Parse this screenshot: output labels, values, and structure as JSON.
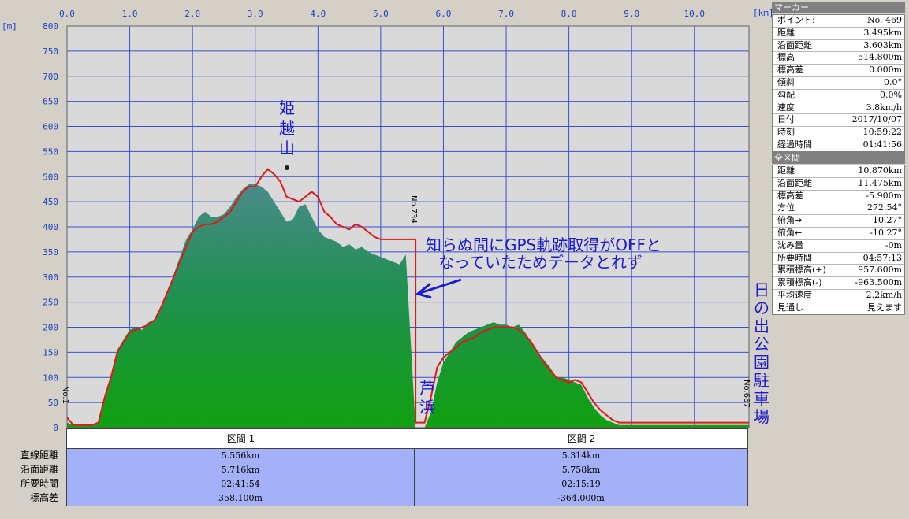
{
  "chart_data": {
    "type": "area",
    "x_unit_label": "[km]",
    "y_unit_label": "[m]",
    "xlim": [
      0,
      10.87
    ],
    "ylim": [
      0,
      800
    ],
    "x_ticks": [
      "0.0",
      "1.0",
      "2.0",
      "3.0",
      "4.0",
      "5.0",
      "6.0",
      "7.0",
      "8.0",
      "9.0",
      "10.0"
    ],
    "y_ticks": [
      "0",
      "50",
      "100",
      "150",
      "200",
      "250",
      "300",
      "350",
      "400",
      "450",
      "500",
      "550",
      "600",
      "650",
      "700",
      "750",
      "800"
    ],
    "grid": true,
    "series": [
      {
        "kind": "red-line",
        "x": [
          0,
          0.1,
          0.2,
          0.3,
          0.4,
          0.5,
          0.6,
          0.7,
          0.8,
          0.9,
          1.0,
          1.1,
          1.2,
          1.3,
          1.4,
          1.5,
          1.6,
          1.7,
          1.8,
          1.9,
          2.0,
          2.1,
          2.2,
          2.3,
          2.4,
          2.5,
          2.6,
          2.7,
          2.8,
          2.9,
          3.0,
          3.1,
          3.2,
          3.3,
          3.4,
          3.5,
          3.6,
          3.7,
          3.8,
          3.9,
          4.0,
          4.1,
          4.2,
          4.3,
          4.4,
          4.5,
          4.6,
          4.7,
          4.8,
          4.9,
          5.0,
          5.1,
          5.2,
          5.3,
          5.4,
          5.556,
          5.556,
          5.7,
          5.8,
          5.9,
          6.0,
          6.1,
          6.2,
          6.3,
          6.4,
          6.5,
          6.6,
          6.7,
          6.8,
          6.9,
          7.0,
          7.1,
          7.2,
          7.3,
          7.4,
          7.5,
          7.6,
          7.7,
          7.8,
          7.9,
          8.0,
          8.1,
          8.2,
          8.3,
          8.4,
          8.5,
          8.6,
          8.7,
          8.8,
          8.9,
          9.0,
          9.1,
          9.2,
          9.3,
          9.4,
          9.5,
          9.6,
          9.7,
          9.8,
          9.9,
          10.0,
          10.2,
          10.4,
          10.6,
          10.87
        ],
        "y": [
          20,
          5,
          5,
          5,
          5,
          10,
          60,
          100,
          150,
          170,
          190,
          195,
          200,
          205,
          215,
          240,
          270,
          300,
          330,
          360,
          390,
          400,
          405,
          405,
          410,
          420,
          430,
          450,
          470,
          480,
          480,
          500,
          515,
          505,
          490,
          460,
          455,
          450,
          460,
          470,
          460,
          430,
          420,
          405,
          400,
          395,
          405,
          400,
          390,
          380,
          375,
          375,
          375,
          375,
          375,
          375,
          10,
          10,
          60,
          120,
          140,
          150,
          160,
          170,
          175,
          180,
          190,
          195,
          200,
          200,
          200,
          200,
          195,
          185,
          170,
          150,
          130,
          115,
          100,
          95,
          90,
          95,
          90,
          70,
          50,
          35,
          25,
          15,
          10,
          10,
          10,
          10,
          10,
          10,
          10,
          10,
          10,
          10,
          10,
          10,
          10,
          10,
          10,
          10,
          10
        ],
        "color": "#e01818"
      },
      {
        "kind": "green-area",
        "x": [
          0,
          0.1,
          0.2,
          0.3,
          0.4,
          0.5,
          0.6,
          0.7,
          0.8,
          0.9,
          1.0,
          1.1,
          1.2,
          1.3,
          1.4,
          1.5,
          1.6,
          1.7,
          1.8,
          1.9,
          2.0,
          2.1,
          2.2,
          2.3,
          2.4,
          2.5,
          2.6,
          2.7,
          2.8,
          2.9,
          3.0,
          3.1,
          3.2,
          3.3,
          3.4,
          3.5,
          3.6,
          3.7,
          3.8,
          3.9,
          4.0,
          4.1,
          4.2,
          4.3,
          4.4,
          4.5,
          4.6,
          4.7,
          4.8,
          4.9,
          5.0,
          5.1,
          5.2,
          5.3,
          5.4,
          5.556,
          5.6,
          5.7,
          5.8,
          5.9,
          6.0,
          6.1,
          6.2,
          6.3,
          6.4,
          6.5,
          6.6,
          6.7,
          6.8,
          6.9,
          7.0,
          7.1,
          7.2,
          7.3,
          7.4,
          7.5,
          7.6,
          7.7,
          7.8,
          7.9,
          8.0,
          8.1,
          8.2,
          8.3,
          8.4,
          8.5,
          8.6,
          8.7,
          8.8,
          8.9,
          9.0,
          9.1,
          9.2,
          9.3,
          9.4,
          9.5,
          9.6,
          9.7,
          9.8,
          9.9,
          10.0,
          10.2,
          10.4,
          10.6,
          10.87
        ],
        "y": [
          10,
          5,
          5,
          5,
          5,
          10,
          60,
          100,
          155,
          175,
          195,
          200,
          195,
          210,
          215,
          240,
          270,
          305,
          340,
          375,
          395,
          420,
          430,
          420,
          420,
          425,
          440,
          460,
          475,
          485,
          485,
          480,
          470,
          450,
          430,
          410,
          415,
          440,
          445,
          420,
          395,
          380,
          375,
          370,
          360,
          365,
          355,
          360,
          350,
          345,
          340,
          335,
          330,
          325,
          345,
          0,
          0,
          0,
          30,
          90,
          130,
          150,
          170,
          180,
          190,
          195,
          200,
          205,
          210,
          205,
          205,
          200,
          205,
          190,
          170,
          150,
          135,
          120,
          100,
          100,
          95,
          90,
          85,
          60,
          40,
          25,
          15,
          10,
          5,
          5,
          5,
          5,
          5,
          5,
          5,
          5,
          5,
          5,
          5,
          5,
          5,
          5,
          5,
          5,
          5
        ],
        "color": "#1a9a1a"
      }
    ],
    "annotations": {
      "summit": "姫越山",
      "end_point": "日の出公園駐車場",
      "dip": "芦浜",
      "gps_note_line1": "知らぬ間にGPS軌跡取得がOFFと",
      "gps_note_line2": "なっていたためデータとれず",
      "marker_start": "No.1",
      "marker_gap": "No.734",
      "marker_end": "No.667"
    }
  },
  "marker_panel": {
    "title": "マーカー",
    "rows": [
      {
        "k": "ポイント:",
        "v": "No. 469"
      },
      {
        "k": "距離",
        "v": "3.495km"
      },
      {
        "k": "沿面距離",
        "v": "3.603km"
      },
      {
        "k": "標高",
        "v": "514.800m"
      },
      {
        "k": "標高差",
        "v": "0.000m"
      },
      {
        "k": "傾斜",
        "v": "0.0°"
      },
      {
        "k": "勾配",
        "v": "0.0%"
      },
      {
        "k": "速度",
        "v": "3.8km/h"
      },
      {
        "k": "日付",
        "v": "2017/10/07"
      },
      {
        "k": "時刻",
        "v": "10:59:22"
      },
      {
        "k": "経過時間",
        "v": "01:41:56"
      }
    ]
  },
  "total_panel": {
    "title": "全区間",
    "rows": [
      {
        "k": "距離",
        "v": "10.870km"
      },
      {
        "k": "沿面距離",
        "v": "11.475km"
      },
      {
        "k": "標高差",
        "v": "-5.900m"
      },
      {
        "k": "方位",
        "v": "272.54°"
      },
      {
        "k": "俯角→",
        "v": "10.27°"
      },
      {
        "k": "俯角←",
        "v": "-10.27°"
      },
      {
        "k": "沈み量",
        "v": "-0m"
      },
      {
        "k": "所要時間",
        "v": "04:57:13"
      },
      {
        "k": "累積標高(+)",
        "v": "957.600m"
      },
      {
        "k": "累積標高(-)",
        "v": "-963.500m"
      },
      {
        "k": "平均速度",
        "v": "2.2km/h"
      },
      {
        "k": "見通し",
        "v": "見えます"
      }
    ]
  },
  "sections": {
    "row_labels": [
      "直線距離",
      "沿面距離",
      "所要時間",
      "標高差"
    ],
    "headers": [
      "区間 1",
      "区間 2"
    ],
    "sec1": [
      "5.556km",
      "5.716km",
      "02:41:54",
      "358.100m"
    ],
    "sec2": [
      "5.314km",
      "5.758km",
      "02:15:19",
      "-364.000m"
    ]
  }
}
